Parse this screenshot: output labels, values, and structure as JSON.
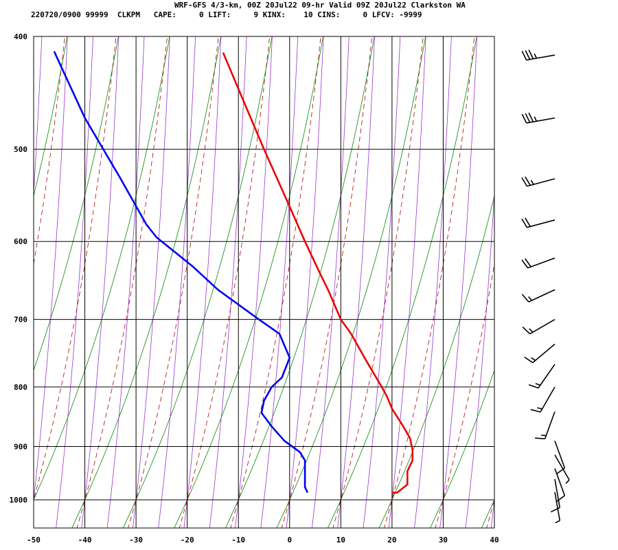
{
  "header": {
    "line1": "WRF-GFS 4/3-km, 00Z 20Jul22 09-hr Valid 09Z 20Jul22 Clarkston WA",
    "line2": "220720/0900 99999  CLKPM   CAPE:     0 LIFT:     9 KINX:    10 CINS:     0 LFCV: -9999"
  },
  "chart_data": {
    "type": "line",
    "title": "WRF-GFS 4/3-km, 00Z 20Jul22 09-hr Valid 09Z 20Jul22 Clarkston WA",
    "subtitle": "220720/0900 99999  CLKPM   CAPE:     0 LIFT:     9 KINX:    10 CINS:     0 LFCV: -9999",
    "xlabel": "",
    "ylabel": "",
    "xlim": [
      -50,
      40
    ],
    "ylim": [
      1050,
      400
    ],
    "y_scale": "log-pressure",
    "grid": true,
    "x_ticks": [
      -50,
      -40,
      -30,
      -20,
      -10,
      0,
      10,
      20,
      30,
      40
    ],
    "y_ticks": [
      400,
      500,
      600,
      700,
      800,
      900,
      1000
    ],
    "series": [
      {
        "color": "#ee0000",
        "p": [
          986,
          986,
          970,
          945,
          925,
          905,
          885,
          862,
          835,
          815,
          800,
          760,
          720,
          700,
          660,
          640,
          600,
          560,
          500,
          460,
          413
        ],
        "x": [
          20.0,
          21.0,
          23.0,
          23.0,
          24.0,
          24.0,
          23.5,
          22.0,
          20.0,
          19.0,
          18.0,
          15.0,
          12.0,
          10.0,
          7.5,
          6.0,
          3.0,
          0.0,
          -5.0,
          -8.5,
          -13.0
        ]
      },
      {
        "color": "#0000ee",
        "p": [
          986,
          975,
          962,
          950,
          940,
          925,
          910,
          890,
          865,
          842,
          822,
          800,
          785,
          755,
          720,
          700,
          660,
          630,
          595,
          580,
          530,
          470,
          412
        ],
        "x": [
          3.5,
          3.0,
          3.0,
          3.0,
          3.0,
          3.0,
          2.0,
          -1.0,
          -3.5,
          -5.5,
          -5.0,
          -3.5,
          -1.5,
          0.0,
          -2.0,
          -6.0,
          -14.0,
          -19.0,
          -26.0,
          -28.0,
          -33.0,
          -40.0,
          -46.0
        ]
      }
    ],
    "wind_barbs": [
      {
        "p": 415,
        "dir": 260,
        "spd": 35
      },
      {
        "p": 470,
        "dir": 260,
        "spd": 35
      },
      {
        "p": 530,
        "dir": 255,
        "spd": 25
      },
      {
        "p": 575,
        "dir": 255,
        "spd": 20
      },
      {
        "p": 620,
        "dir": 250,
        "spd": 20
      },
      {
        "p": 660,
        "dir": 245,
        "spd": 15
      },
      {
        "p": 700,
        "dir": 240,
        "spd": 15
      },
      {
        "p": 735,
        "dir": 230,
        "spd": 15
      },
      {
        "p": 765,
        "dir": 215,
        "spd": 15
      },
      {
        "p": 800,
        "dir": 210,
        "spd": 15
      },
      {
        "p": 840,
        "dir": 200,
        "spd": 15
      },
      {
        "p": 890,
        "dir": 160,
        "spd": 10
      },
      {
        "p": 915,
        "dir": 150,
        "spd": 5
      },
      {
        "p": 940,
        "dir": 160,
        "spd": 10
      },
      {
        "p": 960,
        "dir": 170,
        "spd": 10
      },
      {
        "p": 985,
        "dir": 170,
        "spd": 5
      }
    ]
  }
}
